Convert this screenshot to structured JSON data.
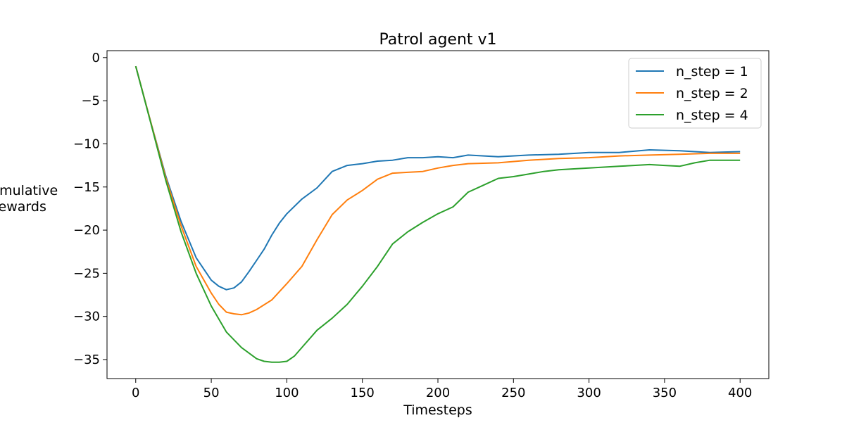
{
  "chart_data": {
    "type": "line",
    "title": "Patrol agent v1",
    "xlabel": "Timesteps",
    "ylabel": "Cumulative rewards",
    "xlim": [
      -19,
      419
    ],
    "ylim": [
      -37.2,
      0.8
    ],
    "xticks": [
      0,
      50,
      100,
      150,
      200,
      250,
      300,
      350,
      400
    ],
    "yticks": [
      0,
      -5,
      -10,
      -15,
      -20,
      -25,
      -30,
      -35
    ],
    "xtick_labels": [
      "0",
      "50",
      "100",
      "150",
      "200",
      "250",
      "300",
      "350",
      "400"
    ],
    "ytick_labels": [
      "0",
      "−5",
      "−10",
      "−15",
      "−20",
      "−25",
      "−30",
      "−35"
    ],
    "grid": false,
    "legend_position": "top-right",
    "series": [
      {
        "name": "n_step = 1",
        "color": "#1f77b4",
        "x": [
          0,
          10,
          20,
          30,
          40,
          50,
          55,
          60,
          65,
          70,
          75,
          80,
          85,
          90,
          95,
          100,
          110,
          120,
          130,
          140,
          150,
          160,
          170,
          180,
          190,
          200,
          210,
          220,
          240,
          260,
          280,
          300,
          320,
          340,
          360,
          380,
          400
        ],
        "values": [
          -1,
          -7.5,
          -13.8,
          -19,
          -23.2,
          -25.8,
          -26.5,
          -26.9,
          -26.7,
          -26,
          -24.8,
          -23.5,
          -22.2,
          -20.6,
          -19.2,
          -18.1,
          -16.4,
          -15.1,
          -13.2,
          -12.5,
          -12.3,
          -12,
          -11.9,
          -11.6,
          -11.6,
          -11.5,
          -11.6,
          -11.3,
          -11.5,
          -11.3,
          -11.2,
          -11,
          -11,
          -10.7,
          -10.8,
          -11,
          -10.9
        ]
      },
      {
        "name": "n_step = 2",
        "color": "#ff7f0e",
        "x": [
          0,
          10,
          20,
          30,
          40,
          50,
          55,
          60,
          65,
          70,
          75,
          80,
          90,
          100,
          110,
          120,
          130,
          140,
          150,
          160,
          170,
          180,
          190,
          200,
          210,
          220,
          240,
          260,
          280,
          300,
          320,
          340,
          360,
          380,
          400
        ],
        "values": [
          -1,
          -7.5,
          -14,
          -19.5,
          -24.2,
          -27.3,
          -28.6,
          -29.5,
          -29.7,
          -29.8,
          -29.6,
          -29.2,
          -28.1,
          -26.2,
          -24.2,
          -21.1,
          -18.2,
          -16.5,
          -15.4,
          -14.1,
          -13.4,
          -13.3,
          -13.2,
          -12.8,
          -12.5,
          -12.3,
          -12.2,
          -11.9,
          -11.7,
          -11.6,
          -11.4,
          -11.3,
          -11.2,
          -11.1,
          -11.1
        ]
      },
      {
        "name": "n_step = 4",
        "color": "#2ca02c",
        "x": [
          0,
          10,
          20,
          30,
          40,
          50,
          60,
          70,
          80,
          85,
          90,
          95,
          100,
          105,
          110,
          120,
          130,
          140,
          150,
          160,
          170,
          180,
          190,
          200,
          210,
          220,
          230,
          240,
          250,
          260,
          270,
          280,
          300,
          320,
          340,
          350,
          360,
          370,
          380,
          400
        ],
        "values": [
          -1,
          -7.6,
          -14.3,
          -20.2,
          -25,
          -28.8,
          -31.8,
          -33.6,
          -34.9,
          -35.2,
          -35.3,
          -35.3,
          -35.2,
          -34.6,
          -33.6,
          -31.6,
          -30.2,
          -28.6,
          -26.5,
          -24.2,
          -21.6,
          -20.2,
          -19.1,
          -18.1,
          -17.3,
          -15.6,
          -14.8,
          -14,
          -13.8,
          -13.5,
          -13.2,
          -13,
          -12.8,
          -12.6,
          -12.4,
          -12.5,
          -12.6,
          -12.2,
          -11.9,
          -11.9
        ]
      }
    ]
  }
}
